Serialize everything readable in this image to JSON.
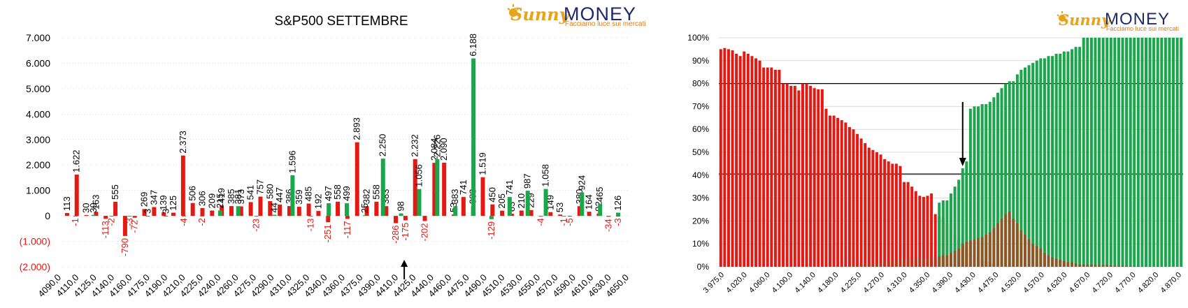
{
  "colors": {
    "red": "#e31a13",
    "green": "#1aa64a",
    "brown": "#b53a1a",
    "grid": "#d9d9d9",
    "text": "#000000",
    "neg_text": "#e31a13",
    "logo_gold": "#e8a317",
    "logo_navy": "#1f2a6b"
  },
  "logo": {
    "brand_left": "Sunny",
    "brand_right": "MONEY",
    "tagline": "Facciamo luce sui mercati"
  },
  "chart_data": [
    {
      "type": "bar",
      "title": "S&P500 SETTEMBRE",
      "ylim": [
        -2000,
        7000
      ],
      "y_ticks": [
        "7.000",
        "6.000",
        "5.000",
        "4.000",
        "3.000",
        "2.000",
        "1.000",
        "0",
        "(1.000)",
        "(2.000)"
      ],
      "y_tick_values": [
        7000,
        6000,
        5000,
        4000,
        3000,
        2000,
        1000,
        0,
        -1000,
        -2000
      ],
      "x_tick_labels": [
        "4090,0",
        "4110,0",
        "4125,0",
        "4140,0",
        "4160,0",
        "4175,0",
        "4190,0",
        "4210,0",
        "4225,0",
        "4240,0",
        "4260,0",
        "4275,0",
        "4290,0",
        "4310,0",
        "4325,0",
        "4340,0",
        "4360,0",
        "4375,0",
        "4390,0",
        "4410,0",
        "4425,0",
        "4440,0",
        "4460,0",
        "4475,0",
        "4490,0",
        "4510,0",
        "4530,0",
        "4550,0",
        "4570,0",
        "4590,0",
        "4610,0",
        "4630,0",
        "4650,0"
      ],
      "series": [
        {
          "color": "red",
          "values": [
            113,
            1622,
            30,
            163,
            -113,
            555,
            -790,
            -72,
            269,
            347,
            139,
            125,
            2373,
            506,
            306,
            209,
            419,
            385,
            373,
            541,
            757,
            580,
            447,
            386,
            359,
            485,
            192,
            -251,
            558,
            -117,
            2893,
            382,
            558,
            383,
            -286,
            -175,
            2232,
            -202,
            2084,
            2090,
            53,
            741,
            383,
            1519,
            450,
            205,
            83,
            210,
            229,
            -4,
            149,
            53,
            -5,
            380,
            164,
            92,
            -34,
            -3
          ],
          "labels": [
            "113",
            "1.622",
            "30",
            "163",
            "-113",
            "555",
            "-790",
            "-72",
            "269",
            "347",
            "139",
            "125",
            "2.373",
            "506",
            "306",
            "209",
            "419",
            "385",
            "373",
            "541",
            "757",
            "580",
            "447",
            "386",
            "359",
            "485",
            "192",
            "-251",
            "558",
            "-117",
            "2.893",
            "382",
            "558",
            "383",
            "-286",
            "-175",
            "2.232",
            "-202",
            "2.084",
            "2.090",
            "53",
            "741",
            "383",
            "1.519",
            "450",
            "205",
            "83",
            "210",
            "229",
            "-4",
            "149",
            "53",
            "-5",
            "380",
            "164",
            "92",
            "-34",
            "-3"
          ]
        },
        {
          "color": "green",
          "values": [
            -1,
            39,
            -2,
            -3,
            3,
            3,
            -4,
            -2,
            215,
            381,
            -23,
            44,
            1596,
            -13,
            497,
            499,
            25,
            2250,
            98,
            1056,
            2226,
            383,
            6188,
            -129,
            741,
            987,
            1058,
            -1,
            924,
            465,
            126
          ],
          "labels": [
            "-1",
            "39",
            "-2",
            "-3",
            "3",
            "3",
            "-4",
            "-2",
            "215",
            "381",
            "-23",
            "44",
            "1.596",
            "-13",
            "497",
            "499",
            "25",
            "2.250",
            "98",
            "1.056",
            "2.226",
            "383",
            "6.188",
            "-129",
            "741",
            "987",
            "1.058",
            "-1",
            "924",
            "465",
            "126"
          ]
        }
      ],
      "arrow_at": "4410,0"
    },
    {
      "type": "bar",
      "ylim": [
        0,
        100
      ],
      "y_ticks": [
        "100%",
        "90%",
        "80%",
        "70%",
        "60%",
        "50%",
        "40%",
        "30%",
        "20%",
        "10%",
        "0%"
      ],
      "y_tick_values": [
        100,
        90,
        80,
        70,
        60,
        50,
        40,
        30,
        20,
        10,
        0
      ],
      "x_tick_labels": [
        "3.975,0",
        "4.020,0",
        "4.060,0",
        "4.100,0",
        "4.140,0",
        "4.180,0",
        "4.225,0",
        "4.270,0",
        "4.310,0",
        "4.350,0",
        "4.390,0",
        "4.430,0",
        "4.475,0",
        "4.520,0",
        "4.570,0",
        "4.620,0",
        "4.670,0",
        "4.720,0",
        "4.770,0",
        "4.820,0",
        "4.870,0"
      ],
      "reference_lines": [
        80,
        40.5
      ],
      "series": [
        {
          "color": "red",
          "values": [
            95,
            95.5,
            95,
            94.5,
            93,
            92,
            94,
            93,
            92,
            91,
            90,
            87,
            87,
            87,
            86,
            86,
            80,
            80,
            79,
            79,
            77,
            80,
            80,
            79,
            78,
            77.5,
            77.5,
            69,
            66,
            66,
            65,
            64,
            63,
            61,
            60,
            58,
            56,
            54,
            52,
            51,
            50,
            49,
            47,
            46,
            45,
            45,
            44,
            37,
            37,
            35,
            33,
            31,
            30.5,
            31,
            32,
            23,
            22,
            21,
            19,
            17,
            14,
            12,
            10,
            8,
            6,
            5,
            4,
            3,
            2.5,
            2,
            1.5,
            1,
            1,
            0.5,
            0.5,
            0.3,
            0.3,
            0.2,
            0.2,
            0.1,
            0,
            0,
            0,
            0,
            0,
            0,
            0,
            0,
            0,
            0,
            0,
            0,
            0,
            0,
            0,
            0,
            0,
            0,
            0,
            0,
            0,
            0,
            0,
            0,
            0,
            0,
            0,
            0,
            0,
            0,
            0,
            0,
            0,
            0,
            0,
            0,
            0,
            0,
            0
          ]
        },
        {
          "color": "green",
          "values": [
            0,
            0,
            0,
            0,
            0,
            0,
            0,
            0,
            0,
            0,
            0,
            0,
            0,
            0,
            0,
            0,
            0,
            0,
            0,
            0,
            0,
            0,
            0,
            0,
            0,
            0,
            0,
            0,
            0,
            0,
            0,
            0,
            0,
            0,
            0,
            0,
            0,
            0,
            0,
            0,
            0,
            0,
            0,
            0,
            0,
            0,
            0,
            0,
            0,
            0,
            0,
            0,
            0,
            0,
            0,
            0,
            28,
            29,
            29,
            32,
            35,
            38,
            43,
            46,
            69,
            70,
            70,
            71,
            71,
            72,
            74,
            76,
            78,
            80,
            81,
            81,
            84,
            86,
            87,
            88,
            89,
            90,
            91,
            91,
            92,
            92,
            93,
            93,
            94,
            94,
            95,
            96,
            96,
            100,
            100,
            100,
            100,
            100,
            100,
            100,
            100,
            100,
            100,
            100,
            100,
            100,
            100,
            100,
            100,
            100,
            100,
            100,
            100,
            100,
            100,
            100,
            100,
            100,
            100,
            100,
            100
          ]
        },
        {
          "color": "brown",
          "values": [
            0,
            0,
            0,
            0,
            0,
            0,
            0,
            0,
            0,
            0,
            0,
            0,
            0,
            0,
            0,
            0,
            0,
            0,
            0,
            0,
            0,
            0,
            0,
            0,
            0,
            0,
            0,
            0,
            0,
            0,
            0,
            0,
            0,
            0,
            0,
            0,
            0,
            0,
            0,
            0,
            0,
            0,
            0,
            0,
            0,
            0,
            0,
            0,
            0,
            0,
            0,
            0,
            0,
            0,
            0,
            0,
            0,
            0,
            0,
            0,
            0,
            0,
            0,
            0,
            0,
            0,
            0,
            0,
            0,
            0,
            0,
            0,
            0,
            0,
            0,
            0,
            0,
            0,
            0,
            0,
            0,
            0,
            0,
            0,
            0,
            0,
            0,
            0,
            0,
            0,
            0,
            0,
            0,
            0,
            0,
            0,
            0,
            0,
            0,
            0,
            0,
            0,
            0,
            0,
            0,
            0,
            0,
            0,
            0,
            0,
            0,
            0,
            0,
            0,
            0,
            0,
            0,
            0,
            0,
            0
          ]
        },
        {
          "color": "green",
          "values": []
        }
      ],
      "overlay_distribution": [
        0,
        0,
        0,
        0,
        0,
        0,
        0,
        0,
        0,
        0,
        0,
        0,
        0,
        0,
        0,
        0,
        0,
        0,
        0,
        0,
        0,
        0,
        0,
        0,
        0,
        0,
        0,
        0,
        0,
        0.5,
        0.5,
        0.5,
        0.5,
        0.5,
        1,
        1,
        1,
        1,
        1.5,
        1.5,
        2,
        2,
        2,
        2.5,
        2.5,
        3,
        3,
        3,
        3.5,
        3.5,
        3.5,
        4,
        4,
        4,
        4,
        4,
        4.5,
        5,
        5,
        6,
        7,
        8,
        10,
        11,
        11.5,
        12,
        12.5,
        13,
        14,
        15,
        17,
        19,
        21,
        23,
        24,
        21,
        19,
        16,
        14,
        12,
        10,
        9,
        8,
        6,
        5,
        4,
        3.5,
        3,
        2.5,
        2,
        2,
        1.5,
        1,
        1,
        1,
        1,
        1,
        0.8,
        0.8,
        0.8,
        0.6,
        0.5,
        0.5,
        0.5,
        0.4,
        0.4,
        0.3,
        0.3,
        0.2,
        0.2,
        0.2,
        0.1,
        0.1,
        0.1,
        0,
        0,
        0,
        0,
        0,
        0,
        0
      ],
      "arrow_at_index": 62
    }
  ]
}
